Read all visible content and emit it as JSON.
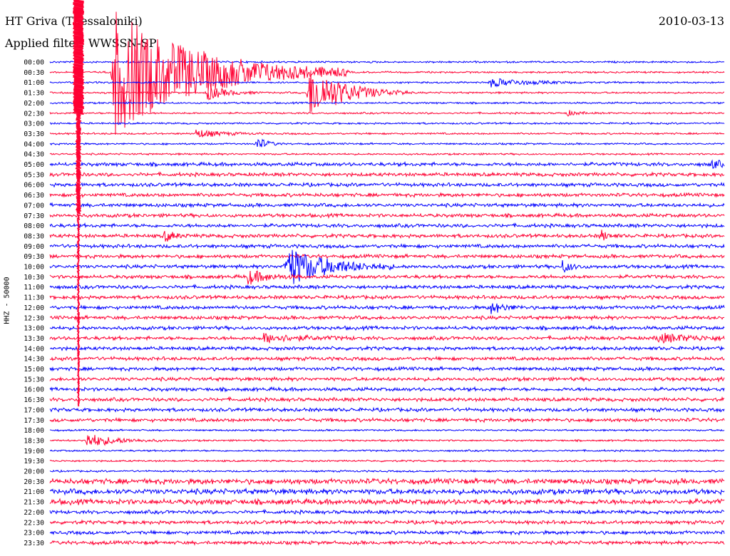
{
  "header": {
    "station": "HT Griva (Thessaloniki)",
    "date": "2010-03-13",
    "filter": "Applied filter: WWSSN-SP"
  },
  "chart_data": {
    "type": "line",
    "ylabel": "HHZ - 50000",
    "time_labels": [
      "00:00",
      "00:30",
      "01:00",
      "01:30",
      "02:00",
      "02:30",
      "03:00",
      "03:30",
      "04:00",
      "04:30",
      "05:00",
      "05:30",
      "06:00",
      "06:30",
      "07:00",
      "07:30",
      "08:00",
      "08:30",
      "09:00",
      "09:30",
      "10:00",
      "10:30",
      "11:00",
      "11:30",
      "12:00",
      "12:30",
      "13:00",
      "13:30",
      "14:00",
      "14:30",
      "15:00",
      "15:30",
      "16:00",
      "16:30",
      "17:00",
      "17:30",
      "18:00",
      "18:30",
      "19:00",
      "19:30",
      "20:00",
      "20:30",
      "21:00",
      "21:30",
      "22:00",
      "22:30",
      "23:00",
      "23:30"
    ],
    "trace_minutes": 30,
    "colors": {
      "even_trace": "#0000ff",
      "odd_trace": "#ff0033"
    },
    "noise_levels": [
      1,
      1,
      1,
      1,
      1,
      1,
      1,
      1,
      1,
      1,
      2,
      2,
      2,
      2,
      2,
      2,
      2,
      2,
      2,
      2,
      2,
      2,
      2,
      2,
      2,
      2,
      2,
      2,
      2,
      2,
      2,
      2,
      2,
      2,
      2,
      2,
      1,
      1,
      1,
      1,
      1,
      3,
      3,
      3,
      2,
      2,
      2,
      2
    ],
    "events": [
      {
        "trace": "00:30",
        "minute": 2.8,
        "amplitude": 90,
        "duration": 3.5
      },
      {
        "trace": "01:30",
        "minute": 7.0,
        "amplitude": 10,
        "duration": 0.8
      },
      {
        "trace": "01:30",
        "minute": 11.5,
        "amplitude": 38,
        "duration": 1.5
      },
      {
        "trace": "01:00",
        "minute": 19.6,
        "amplitude": 6,
        "duration": 1.5
      },
      {
        "trace": "02:30",
        "minute": 23.0,
        "amplitude": 4,
        "duration": 0.4
      },
      {
        "trace": "03:30",
        "minute": 6.5,
        "amplitude": 6,
        "duration": 1.0
      },
      {
        "trace": "04:00",
        "minute": 9.2,
        "amplitude": 10,
        "duration": 0.4
      },
      {
        "trace": "05:00",
        "minute": 29.4,
        "amplitude": 6,
        "duration": 0.5
      },
      {
        "trace": "08:30",
        "minute": 5.1,
        "amplitude": 8,
        "duration": 0.4
      },
      {
        "trace": "08:30",
        "minute": 24.5,
        "amplitude": 8,
        "duration": 0.3
      },
      {
        "trace": "10:00",
        "minute": 10.5,
        "amplitude": 30,
        "duration": 1.6
      },
      {
        "trace": "10:30",
        "minute": 8.8,
        "amplitude": 10,
        "duration": 0.8
      },
      {
        "trace": "10:00",
        "minute": 22.8,
        "amplitude": 8,
        "duration": 0.4
      },
      {
        "trace": "12:00",
        "minute": 19.6,
        "amplitude": 8,
        "duration": 0.6
      },
      {
        "trace": "13:30",
        "minute": 9.5,
        "amplitude": 6,
        "duration": 1.4
      },
      {
        "trace": "13:30",
        "minute": 27.0,
        "amplitude": 6,
        "duration": 1.6
      },
      {
        "trace": "18:30",
        "minute": 1.6,
        "amplitude": 10,
        "duration": 1.2
      }
    ]
  }
}
